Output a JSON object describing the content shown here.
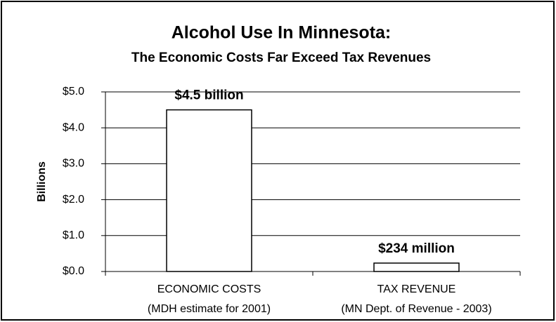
{
  "chart_data": {
    "type": "bar",
    "title": "Alcohol Use In Minnesota:",
    "subtitle": "The Economic Costs Far Exceed Tax Revenues",
    "y_label": "Billions",
    "categories": [
      "ECONOMIC COSTS",
      "TAX REVENUE"
    ],
    "category_notes": [
      "(MDH estimate for 2001)",
      "(MN Dept. of Revenue - 2003)"
    ],
    "values": [
      4.5,
      0.234
    ],
    "value_labels": [
      "$4.5 billion",
      "$234 million"
    ],
    "color": "#ffffff",
    "ylim": [
      0,
      5
    ],
    "yticks": [
      {
        "value": 0,
        "label": "$0.0"
      },
      {
        "value": 1,
        "label": "$1.0"
      },
      {
        "value": 2,
        "label": "$2.0"
      },
      {
        "value": 3,
        "label": "$3.0"
      },
      {
        "value": 4,
        "label": "$4.0"
      },
      {
        "value": 5,
        "label": "$5.0"
      }
    ],
    "grid": true
  }
}
